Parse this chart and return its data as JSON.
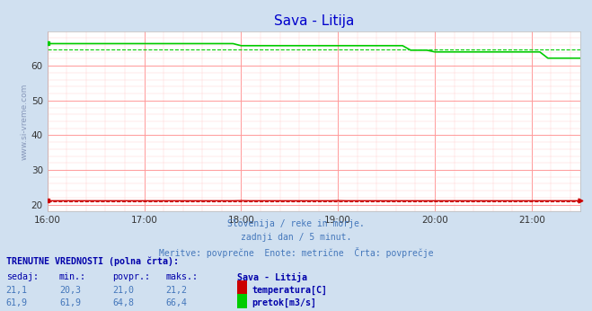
{
  "title": "Sava - Litija",
  "bg_color": "#d0e0f0",
  "plot_bg_color": "#ffffff",
  "grid_color_major": "#ff9999",
  "grid_color_minor": "#ffcccc",
  "subtitle_lines": [
    "Slovenija / reke in morje.",
    "zadnji dan / 5 minut.",
    "Meritve: povprečne  Enote: metrične  Črta: povprečje"
  ],
  "table_header": "TRENUTNE VREDNOSTI (polna črta):",
  "table_cols": [
    "sedaj:",
    "min.:",
    "povpr.:",
    "maks.:",
    "Sava - Litija"
  ],
  "row1_vals": [
    "21,1",
    "20,3",
    "21,0",
    "21,2"
  ],
  "row1_label": "temperatura[C]",
  "row1_color": "#cc0000",
  "row2_vals": [
    "61,9",
    "61,9",
    "64,8",
    "66,4"
  ],
  "row2_label": "pretok[m3/s]",
  "row2_color": "#00cc00",
  "ylabel_text": "www.si-vreme.com",
  "xticklabels": [
    "16:00",
    "17:00",
    "18:00",
    "19:00",
    "20:00",
    "21:00"
  ],
  "yticks": [
    20,
    30,
    40,
    50,
    60
  ],
  "ymin": 18,
  "ymax": 70,
  "temp_base": 21.1,
  "temp_avg": 21.0,
  "flow_avg": 64.8,
  "text_color": "#4477bb",
  "header_color": "#0000aa",
  "title_color": "#0000cc"
}
